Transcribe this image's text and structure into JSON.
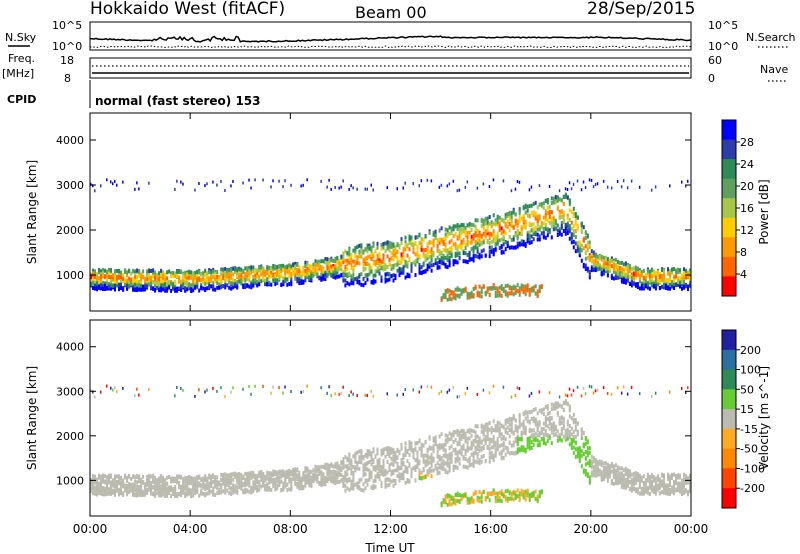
{
  "header": {
    "station": "Hokkaido West (fitACF)",
    "beam": "Beam 00",
    "date": "28/Sep/2015"
  },
  "noise_panel": {
    "left_label": "N.Sky",
    "right_label": "N.Search",
    "ticks": [
      "10^5",
      "10^0"
    ]
  },
  "freq_panel": {
    "left_label_1": "Freq.",
    "left_label_2": "[MHz]",
    "left_ticks": [
      "18",
      "8"
    ],
    "right_ticks": [
      "60",
      "0"
    ],
    "right_label": "Nave"
  },
  "cpid": {
    "label": "CPID",
    "text": "normal (fast stereo) 153"
  },
  "colors": {
    "power": [
      "#0000ff",
      "#2c3ca8",
      "#2e8b57",
      "#5fa05f",
      "#a5c84b",
      "#ffcc00",
      "#ff9900",
      "#ff6600",
      "#ff0000"
    ],
    "velocity": [
      "#2020a0",
      "#2d6ea0",
      "#2e8b57",
      "#66cc33",
      "#bbbbb0",
      "#ffaa22",
      "#ff8800",
      "#ff4400",
      "#ff0000"
    ]
  },
  "chart_data": [
    {
      "type": "heatmap",
      "name": "power",
      "ylabel": "Slant Range [km]",
      "yticks": [
        "4000",
        "3000",
        "2000",
        "1000"
      ],
      "ylim": [
        200,
        4600
      ],
      "colorbar_label": "Power [dB]",
      "colorbar_ticks": [
        "28",
        "24",
        "20",
        "16",
        "12",
        "8",
        "4"
      ],
      "x_range_hours": [
        0,
        24
      ],
      "scatter_band": [
        [
          0,
          1000
        ],
        [
          4,
          950
        ],
        [
          8,
          1100
        ],
        [
          12,
          1450
        ],
        [
          16,
          2000
        ],
        [
          19,
          2500
        ],
        [
          20,
          1400
        ],
        [
          22,
          1000
        ],
        [
          24,
          1000
        ]
      ],
      "secondary_band": [
        [
          14,
          600
        ],
        [
          16,
          700
        ],
        [
          18,
          700
        ]
      ]
    },
    {
      "type": "heatmap",
      "name": "velocity",
      "ylabel": "Slant Range [km]",
      "yticks": [
        "4000",
        "3000",
        "2000",
        "1000"
      ],
      "ylim": [
        200,
        4600
      ],
      "colorbar_label": "Velocity [m s^-1]",
      "colorbar_ticks": [
        "200",
        "100",
        "50",
        "15",
        "-15",
        "-50",
        "-100",
        "-200"
      ],
      "x_range_hours": [
        0,
        24
      ],
      "xlabel": "Time UT",
      "xticks": [
        "00:00",
        "04:00",
        "08:00",
        "12:00",
        "16:00",
        "20:00",
        "00:00"
      ]
    }
  ]
}
